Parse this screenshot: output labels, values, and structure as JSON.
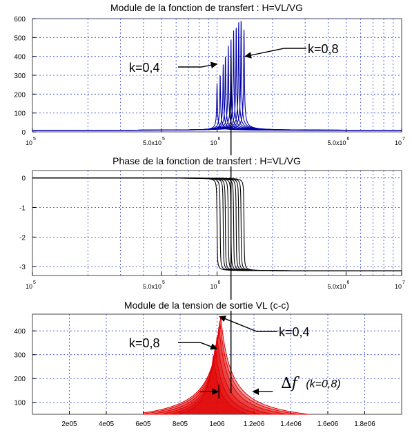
{
  "chart_data": [
    {
      "type": "line",
      "title": "Module de la fonction de transfert : H=VL/VG",
      "x_scale": "log",
      "xlim": [
        100000,
        10000000
      ],
      "ylim": [
        0,
        600
      ],
      "grid": true,
      "y_ticks": [
        0,
        100,
        200,
        300,
        400,
        500,
        600
      ],
      "x_tick_labels": [
        {
          "value": 100000,
          "base": "10",
          "exp": "5"
        },
        {
          "value": 500000,
          "base": "5.0x10",
          "exp": "5"
        },
        {
          "value": 1000000,
          "base": "10",
          "exp": "6"
        },
        {
          "value": 5000000,
          "base": "5.0x10",
          "exp": "6"
        },
        {
          "value": 10000000,
          "base": "10",
          "exp": "7"
        }
      ],
      "series_color": "#0000a8",
      "series": [
        {
          "f0": 1000000,
          "peak": 250
        },
        {
          "f0": 1040000,
          "peak": 300
        },
        {
          "f0": 1080000,
          "peak": 350
        },
        {
          "f0": 1110000,
          "peak": 400
        },
        {
          "f0": 1150000,
          "peak": 450
        },
        {
          "f0": 1190000,
          "peak": 490
        },
        {
          "f0": 1230000,
          "peak": 530
        },
        {
          "f0": 1270000,
          "peak": 560
        },
        {
          "f0": 1310000,
          "peak": 580
        },
        {
          "f0": 1350000,
          "peak": 595
        },
        {
          "f0": 1400000,
          "peak": 545
        }
      ],
      "annotations": [
        {
          "text": "k=0,4",
          "target_x": 1000000,
          "target_y": 360
        },
        {
          "text": "k=0,8",
          "target_x": 1420000,
          "target_y": 400
        }
      ]
    },
    {
      "type": "line",
      "title": "Phase de la fonction de transfert : H=VL/VG",
      "x_scale": "log",
      "xlim": [
        100000,
        10000000
      ],
      "ylim": [
        -3.3,
        0.25
      ],
      "grid": true,
      "y_ticks": [
        0,
        -1,
        -2,
        -3
      ],
      "x_tick_labels": [
        {
          "value": 100000,
          "base": "10",
          "exp": "5"
        },
        {
          "value": 500000,
          "base": "5.0x10",
          "exp": "5"
        },
        {
          "value": 1000000,
          "base": "10",
          "exp": "6"
        },
        {
          "value": 5000000,
          "base": "5.0x10",
          "exp": "6"
        },
        {
          "value": 10000000,
          "base": "10",
          "exp": "7"
        }
      ],
      "series_color": "#000000",
      "series": [
        {
          "f0": 1000000
        },
        {
          "f0": 1040000
        },
        {
          "f0": 1080000
        },
        {
          "f0": 1110000
        },
        {
          "f0": 1150000
        },
        {
          "f0": 1190000
        },
        {
          "f0": 1230000
        },
        {
          "f0": 1270000
        },
        {
          "f0": 1310000
        },
        {
          "f0": 1350000
        },
        {
          "f0": 1400000
        }
      ]
    },
    {
      "type": "area",
      "title": "Module de la tension de sortie VL (c-c)",
      "x_scale": "linear",
      "xlim": [
        0,
        2000000
      ],
      "ylim": [
        50,
        470
      ],
      "grid": true,
      "y_ticks": [
        100,
        200,
        300,
        400
      ],
      "x_ticks": [
        200000,
        400000,
        600000,
        800000,
        1000000,
        1200000,
        1400000,
        1600000,
        1800000
      ],
      "x_tick_labels": [
        "2e05",
        "4e05",
        "6e05",
        "8e05",
        "1e06",
        "1.2e06",
        "1.4e06",
        "1.6e06",
        "1.8e06"
      ],
      "series_color": "#e00000",
      "series": [
        {
          "f0": 980000,
          "peak": 300
        },
        {
          "f0": 990000,
          "peak": 340
        },
        {
          "f0": 1000000,
          "peak": 380
        },
        {
          "f0": 1010000,
          "peak": 420
        },
        {
          "f0": 1015000,
          "peak": 445
        },
        {
          "f0": 1020000,
          "peak": 460
        }
      ],
      "annotations": [
        {
          "text": "k=0,8",
          "target_x": 1010000,
          "target_y": 325
        },
        {
          "text": "k=0,4",
          "target_x": 1010000,
          "target_y": 460
        }
      ],
      "delta_f": {
        "label": "∆f",
        "note": "(k=0,8)",
        "x_from": 1010000,
        "x_to": 1190000,
        "y": 145
      }
    }
  ],
  "guide": {
    "x": 1190000,
    "y_top_in_first_panel": 400
  }
}
